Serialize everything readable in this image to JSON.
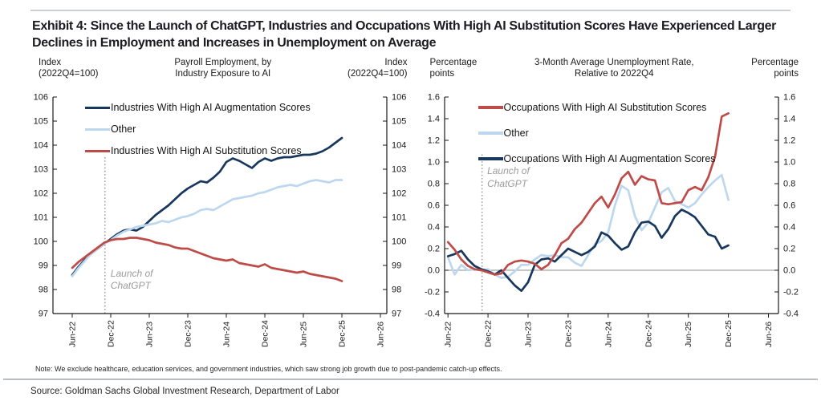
{
  "page": {
    "title": "Exhibit 4: Since the Launch of ChatGPT, Industries and Occupations With High AI Substitution Scores Have Experienced Larger Declines in Employment and Increases in Unemployment on Average",
    "note": "Note: We exclude healthcare, education services, and government industries, which saw strong job growth due to post-pandemic catch-up effects.",
    "source": "Source: Goldman Sachs Global Investment Research, Department of Labor"
  },
  "colors": {
    "navy": "#17375D",
    "light_blue": "#BDD7EE",
    "red": "#BE4B48",
    "axis": "#1a1a1a",
    "zero_line": "#8c8c8c",
    "dotted_marker": "#969696",
    "annotation_text": "#9b9b9b"
  },
  "chart_data": [
    {
      "type": "line",
      "title_lines": [
        "Payroll Employment, by",
        "Industry Exposure to AI"
      ],
      "y_label_left_lines": [
        "Index",
        "(2022Q4=100)"
      ],
      "y_label_right_lines": [
        "Index",
        "(2022Q4=100)"
      ],
      "ylim": [
        97,
        106
      ],
      "ytick_step": 1,
      "ytick_decimals": 0,
      "x_start": "Jun-22",
      "x_interval": "monthly",
      "x_tick_months": [
        0,
        6,
        12,
        18,
        24,
        30,
        36,
        42,
        48
      ],
      "x_tick_labels": [
        "Jun-22",
        "Dec-22",
        "Jun-23",
        "Dec-23",
        "Jun-24",
        "Dec-24",
        "Jun-25",
        "Dec-25",
        "Jun-26"
      ],
      "x_domain_months": [
        -3,
        49
      ],
      "zero_line": false,
      "grid": false,
      "legend_position": "top-left-inside",
      "annotation": {
        "lines": [
          "Launch of",
          "ChatGPT"
        ],
        "x_month": 5.1,
        "line_top_value": 103.5,
        "text_top_value": 98.9
      },
      "draw_order": [
        0,
        1,
        2
      ],
      "series": [
        {
          "name": "Industries With High AI Augmentation Scores",
          "color": "#17375D",
          "values": [
            98.6,
            98.95,
            99.25,
            99.5,
            99.7,
            99.9,
            100.1,
            100.3,
            100.45,
            100.5,
            100.45,
            100.6,
            100.85,
            101.1,
            101.3,
            101.5,
            101.75,
            102.0,
            102.2,
            102.35,
            102.5,
            102.45,
            102.65,
            102.9,
            103.3,
            103.45,
            103.35,
            103.2,
            103.05,
            103.3,
            103.45,
            103.35,
            103.45,
            103.5,
            103.5,
            103.55,
            103.6,
            103.6,
            103.65,
            103.75,
            103.9,
            104.1,
            104.3
          ]
        },
        {
          "name": "Other",
          "color": "#BDD7EE",
          "values": [
            98.55,
            98.9,
            99.2,
            99.5,
            99.7,
            99.9,
            100.05,
            100.25,
            100.4,
            100.5,
            100.6,
            100.65,
            100.7,
            100.75,
            100.85,
            100.8,
            100.9,
            101.0,
            101.05,
            101.15,
            101.3,
            101.35,
            101.3,
            101.45,
            101.6,
            101.75,
            101.8,
            101.85,
            101.9,
            102.0,
            102.05,
            102.15,
            102.25,
            102.3,
            102.35,
            102.3,
            102.4,
            102.5,
            102.55,
            102.5,
            102.45,
            102.55,
            102.55
          ]
        },
        {
          "name": "Industries With High AI Substitution Scores",
          "color": "#BE4B48",
          "values": [
            98.9,
            99.15,
            99.35,
            99.55,
            99.75,
            99.95,
            100.05,
            100.1,
            100.1,
            100.15,
            100.15,
            100.1,
            100.05,
            99.95,
            99.9,
            99.85,
            99.75,
            99.7,
            99.7,
            99.6,
            99.5,
            99.4,
            99.3,
            99.25,
            99.2,
            99.25,
            99.1,
            99.05,
            99.0,
            98.95,
            99.05,
            98.9,
            98.85,
            98.8,
            98.75,
            98.7,
            98.75,
            98.65,
            98.6,
            98.55,
            98.5,
            98.45,
            98.35
          ]
        }
      ]
    },
    {
      "type": "line",
      "title_lines": [
        "3-Month Average Unemployment Rate,",
        "Relative to 2022Q4"
      ],
      "y_label_left_lines": [
        "Percentage",
        "points"
      ],
      "y_label_right_lines": [
        "Percentage",
        "points"
      ],
      "ylim": [
        -0.4,
        1.6
      ],
      "ytick_step": 0.2,
      "ytick_decimals": 1,
      "x_start": "Jun-22",
      "x_interval": "monthly",
      "x_tick_months": [
        0,
        6,
        12,
        18,
        24,
        30,
        36,
        42,
        48
      ],
      "x_tick_labels": [
        "Jun-22",
        "Dec-22",
        "Jun-23",
        "Dec-23",
        "Jun-24",
        "Dec-24",
        "Jun-25",
        "Dec-25",
        "Jun-26"
      ],
      "x_domain_months": [
        -0.5,
        49.5
      ],
      "zero_line": true,
      "grid": false,
      "legend_position": "top-left-inside",
      "annotation": {
        "lines": [
          "Launch of",
          "ChatGPT"
        ],
        "x_month": 5.1,
        "line_top_value": 1.07,
        "text_top_value": 0.97
      },
      "draw_order": [
        1,
        2,
        0
      ],
      "series": [
        {
          "name": "Occupations With High AI Substitution Scores",
          "color": "#BE4B48",
          "values": [
            0.26,
            0.19,
            0.1,
            0.04,
            0.01,
            0.0,
            -0.02,
            -0.04,
            -0.03,
            0.05,
            0.08,
            0.09,
            0.08,
            0.06,
            0.01,
            0.05,
            0.14,
            0.25,
            0.29,
            0.38,
            0.44,
            0.53,
            0.62,
            0.68,
            0.58,
            0.7,
            0.85,
            0.91,
            0.79,
            0.87,
            0.84,
            0.83,
            0.62,
            0.61,
            0.62,
            0.63,
            0.74,
            0.77,
            0.74,
            0.86,
            1.05,
            1.42,
            1.45
          ]
        },
        {
          "name": "Other",
          "color": "#BDD7EE",
          "values": [
            0.12,
            -0.04,
            0.05,
            0.0,
            0.01,
            0.0,
            0.01,
            -0.04,
            -0.07,
            -0.06,
            -0.01,
            0.05,
            0.05,
            0.1,
            0.14,
            0.13,
            0.14,
            0.12,
            0.12,
            0.07,
            0.04,
            0.14,
            0.24,
            0.27,
            0.35,
            0.6,
            0.78,
            0.74,
            0.5,
            0.37,
            0.44,
            0.58,
            0.72,
            0.76,
            0.64,
            0.61,
            0.58,
            0.62,
            0.7,
            0.77,
            0.83,
            0.88,
            0.65
          ]
        },
        {
          "name": "Occupations With High AI Augmentation Scores",
          "color": "#17375D",
          "values": [
            0.13,
            0.15,
            0.18,
            0.1,
            0.04,
            0.01,
            -0.01,
            -0.04,
            0.0,
            -0.07,
            -0.14,
            -0.19,
            -0.11,
            0.05,
            0.1,
            0.11,
            0.08,
            0.14,
            0.2,
            0.17,
            0.14,
            0.17,
            0.22,
            0.35,
            0.32,
            0.25,
            0.19,
            0.22,
            0.35,
            0.44,
            0.45,
            0.41,
            0.3,
            0.38,
            0.5,
            0.56,
            0.53,
            0.49,
            0.41,
            0.33,
            0.31,
            0.2,
            0.23
          ]
        }
      ]
    }
  ]
}
